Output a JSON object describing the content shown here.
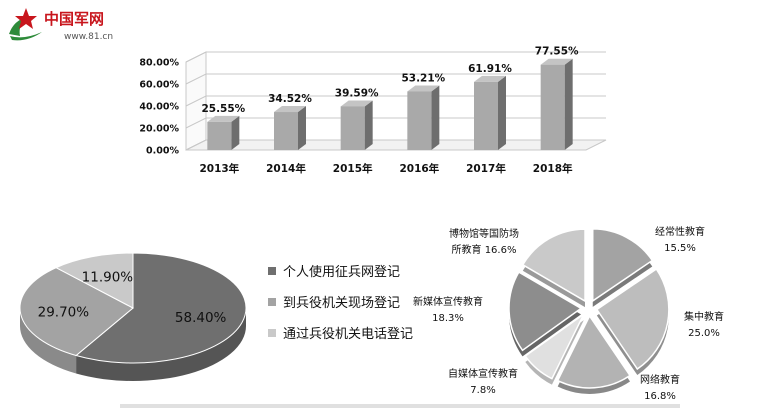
{
  "logo": {
    "brand": "中国军网",
    "site": "www.81.cn"
  },
  "colors": {
    "logo_red": "#c8161d",
    "logo_green": "#2e8b3a",
    "bar_front": "#a9a9a9",
    "bar_side": "#6e6e6e",
    "bar_top": "#c4c4c4",
    "pie_dark": "#6f6f6f",
    "pie_mid": "#a3a3a3",
    "pie_light": "#c9c9c9",
    "text": "#111111"
  },
  "chart_data": [
    {
      "type": "bar",
      "categories": [
        "2013年",
        "2014年",
        "2015年",
        "2016年",
        "2017年",
        "2018年"
      ],
      "values": [
        25.55,
        34.52,
        39.59,
        53.21,
        61.91,
        77.55
      ],
      "data_labels": [
        "25.55%",
        "34.52%",
        "39.59%",
        "53.21%",
        "61.91%",
        "77.55%"
      ],
      "yticks": [
        "0.00%",
        "20.00%",
        "40.00%",
        "60.00%",
        "80.00%"
      ],
      "ylim": [
        0,
        80
      ],
      "grid": true
    },
    {
      "type": "pie",
      "labels": [
        "个人使用征兵网登记",
        "到兵役机关现场登记",
        "通过兵役机关电话登记"
      ],
      "values": [
        58.4,
        29.7,
        11.9
      ],
      "data_labels": [
        "58.40%",
        "29.70%",
        "11.90%"
      ],
      "legend": "right"
    },
    {
      "type": "pie",
      "labels": [
        [
          "经常性教育"
        ],
        [
          "集中教育"
        ],
        [
          "网络教育"
        ],
        [
          "自媒体宣传教育"
        ],
        [
          "新媒体宣传教育"
        ],
        [
          "博物馆等国防场",
          "所教育"
        ]
      ],
      "values": [
        15.5,
        25.0,
        16.8,
        7.8,
        18.3,
        16.6
      ],
      "data_labels": [
        "15.5%",
        "25.0%",
        "16.8%",
        "7.8%",
        "18.3%",
        "16.6%"
      ],
      "exploded": true
    }
  ]
}
